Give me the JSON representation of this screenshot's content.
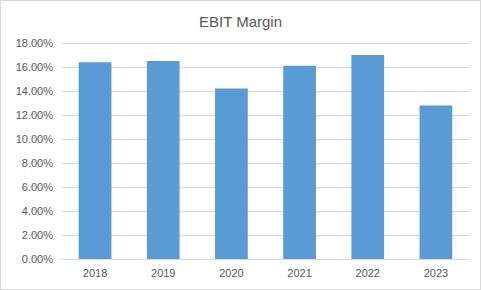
{
  "chart_data": {
    "type": "bar",
    "title": "EBIT Margin",
    "categories": [
      "2018",
      "2019",
      "2020",
      "2021",
      "2022",
      "2023"
    ],
    "values": [
      16.4,
      16.5,
      14.2,
      16.1,
      17.0,
      12.8
    ],
    "color": "#5b9bd5",
    "ylim": [
      0,
      18
    ],
    "yticks": [
      {
        "value": 0,
        "label": "0.00%"
      },
      {
        "value": 2,
        "label": "2.00%"
      },
      {
        "value": 4,
        "label": "4.00%"
      },
      {
        "value": 6,
        "label": "6.00%"
      },
      {
        "value": 8,
        "label": "8.00%"
      },
      {
        "value": 10,
        "label": "10.00%"
      },
      {
        "value": 12,
        "label": "12.00%"
      },
      {
        "value": 14,
        "label": "14.00%"
      },
      {
        "value": 16,
        "label": "16.00%"
      },
      {
        "value": 18,
        "label": "18.00%"
      }
    ],
    "grid": true
  }
}
